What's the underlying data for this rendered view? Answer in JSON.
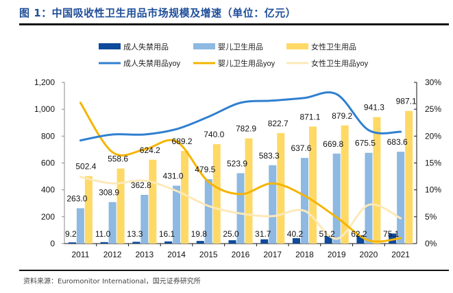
{
  "title": "图 1：中国吸收性卫生用品市场规模及增速（单位：亿元）",
  "source": "资料来源：Euromonitor International，国元证券研究所",
  "chart_data": {
    "type": "bar",
    "title": "中国吸收性卫生用品市场规模及增速（单位：亿元）",
    "categories": [
      "2011",
      "2012",
      "2013",
      "2014",
      "2015",
      "2016",
      "2017",
      "2018",
      "2019",
      "2020",
      "2021"
    ],
    "series": [
      {
        "name": "成人失禁用品",
        "type": "bar",
        "axis": "left",
        "color": "#0e4a9b",
        "values": [
          9.2,
          11.0,
          13.3,
          16.1,
          19.8,
          25.0,
          31.7,
          40.2,
          51.2,
          62.2,
          75.1
        ],
        "labels": [
          "9.2",
          "11.0",
          "13.3",
          "16.1",
          "19.8",
          "25.0",
          "31.7",
          "40.2",
          "51.2",
          "62.2",
          "75.1"
        ]
      },
      {
        "name": "婴儿卫生用品",
        "type": "bar",
        "axis": "left",
        "color": "#8db9e2",
        "values": [
          263.0,
          308.9,
          362.8,
          431.0,
          479.5,
          523.9,
          583.3,
          637.6,
          669.8,
          675.5,
          683.6
        ],
        "labels": [
          "263.0",
          "308.9",
          "362.8",
          "431.0",
          "479.5",
          "523.9",
          "583.3",
          "637.6",
          "669.8",
          "675.5",
          "683.6"
        ]
      },
      {
        "name": "女性卫生用品",
        "type": "bar",
        "axis": "left",
        "color": "#ffd966",
        "values": [
          502.4,
          558.6,
          624.2,
          689.2,
          740.0,
          782.9,
          822.7,
          871.1,
          879.2,
          941.3,
          987.1
        ],
        "labels": [
          "502.4",
          "558.6",
          "624.2",
          "689.2",
          "740.0",
          "782.9",
          "822.7",
          "871.1",
          "879.2",
          "941.3",
          "987.1"
        ]
      },
      {
        "name": "成人失禁用品yoy",
        "type": "line",
        "axis": "right",
        "color": "#2f7fd0",
        "values": [
          19.2,
          20.3,
          20.3,
          21.3,
          23.6,
          26.2,
          26.6,
          27.1,
          27.8,
          21.1,
          20.8
        ]
      },
      {
        "name": "婴儿卫生用品yoy",
        "type": "line",
        "axis": "right",
        "color": "#f5b400",
        "values": [
          26.2,
          17.0,
          17.5,
          19.0,
          11.5,
          9.2,
          11.2,
          8.9,
          4.9,
          0.6,
          1.0
        ]
      },
      {
        "name": "女性卫生用品yoy",
        "type": "line",
        "axis": "right",
        "color": "#fde9b8",
        "values": [
          12.4,
          11.2,
          11.7,
          9.8,
          7.0,
          5.6,
          5.1,
          6.1,
          0.9,
          7.2,
          4.7
        ]
      }
    ],
    "y_left": {
      "min": 0,
      "max": 1200,
      "ticks": [
        "0",
        "200",
        "400",
        "600",
        "800",
        "1,000",
        "1,200"
      ]
    },
    "y_right": {
      "min": 0,
      "max": 30,
      "ticks": [
        "0%",
        "5%",
        "10%",
        "15%",
        "20%",
        "25%",
        "30%"
      ]
    },
    "xlabel": "",
    "ylabel": "",
    "legend": "top",
    "grid": false
  }
}
